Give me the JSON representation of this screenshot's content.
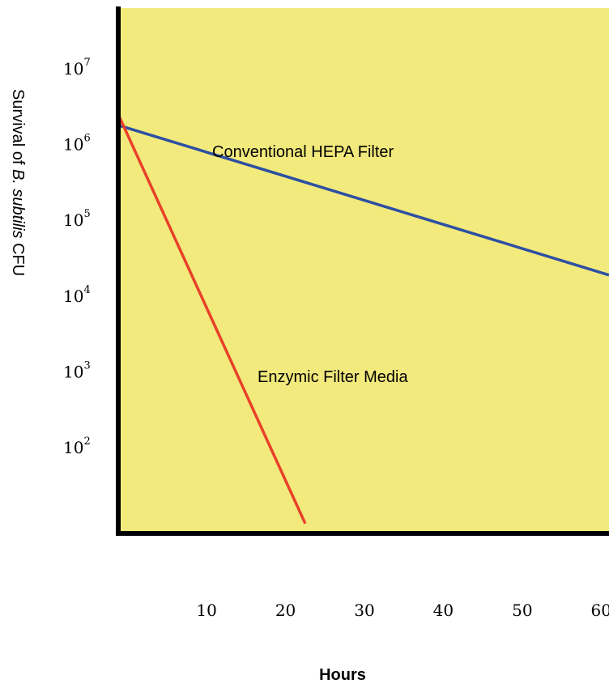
{
  "chart_data": {
    "type": "line",
    "xlabel": "Hours",
    "ylabel": {
      "prefix": "Survival of ",
      "italic": "B. subtilis",
      "suffix": " CFU"
    },
    "x_ticks": [
      10,
      20,
      30,
      40,
      50,
      60
    ],
    "y_ticks": [
      {
        "base": "10",
        "exp": "2",
        "value": 100
      },
      {
        "base": "10",
        "exp": "3",
        "value": 1000
      },
      {
        "base": "10",
        "exp": "4",
        "value": 10000
      },
      {
        "base": "10",
        "exp": "5",
        "value": 100000
      },
      {
        "base": "10",
        "exp": "6",
        "value": 1000000
      },
      {
        "base": "10",
        "exp": "7",
        "value": 10000000
      }
    ],
    "y_scale": "log",
    "xlim": [
      -1.2,
      61
    ],
    "ylim_log10": [
      0.87,
      7.8
    ],
    "grid": false,
    "background_color": "#f2ea7c",
    "series": [
      {
        "name": "Conventional HEPA Filter",
        "color": "#2d4fa3",
        "points": [
          [
            -1.2,
            1800000
          ],
          [
            61,
            19000
          ]
        ]
      },
      {
        "name": "Enzymic Filter Media",
        "color": "#e8402a",
        "points": [
          [
            -1.2,
            2500000
          ],
          [
            22.5,
            10
          ]
        ]
      }
    ]
  }
}
